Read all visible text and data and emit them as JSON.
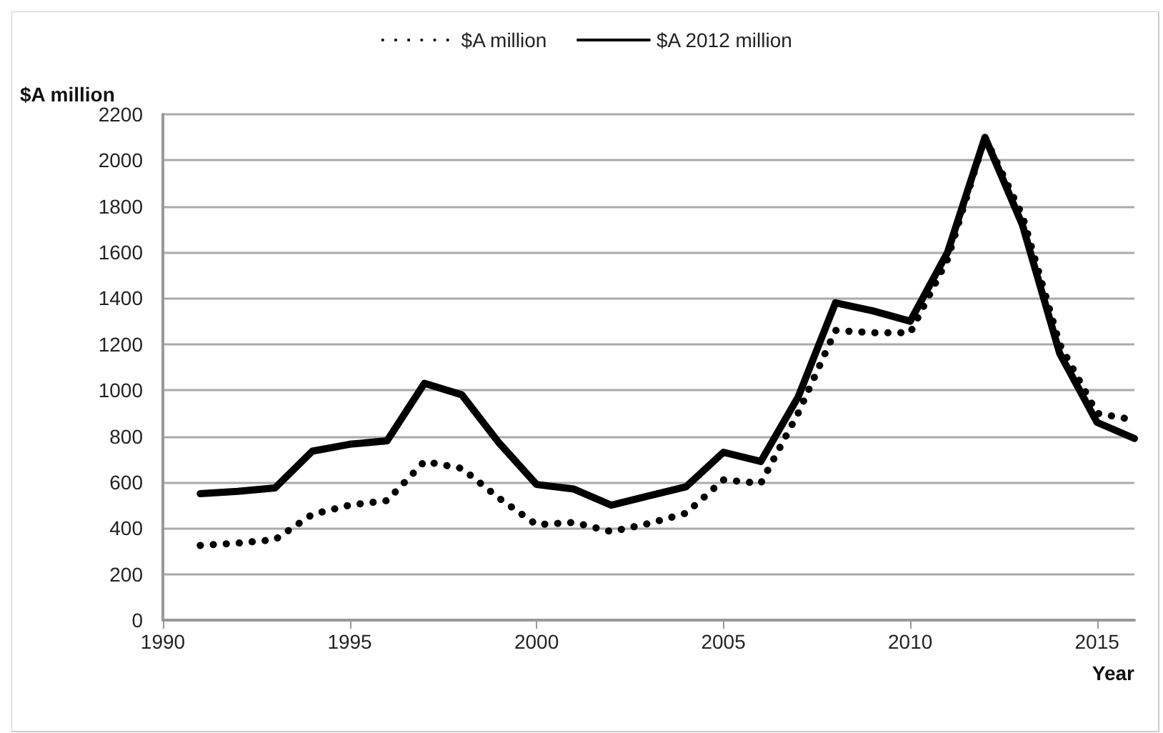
{
  "chart_data": {
    "type": "line",
    "xlabel": "Year",
    "ylabel": "$A million",
    "x": [
      1991,
      1992,
      1993,
      1994,
      1995,
      1996,
      1997,
      1998,
      1999,
      2000,
      2001,
      2002,
      2003,
      2004,
      2005,
      2006,
      2007,
      2008,
      2009,
      2010,
      2011,
      2012,
      2013,
      2014,
      2015,
      2016
    ],
    "series": [
      {
        "name": "$A million",
        "color": "#000000",
        "line_style": "dotted",
        "values": [
          325,
          335,
          350,
          460,
          500,
          520,
          690,
          660,
          530,
          415,
          425,
          385,
          420,
          465,
          610,
          595,
          900,
          1260,
          1250,
          1250,
          1570,
          2100,
          1760,
          1200,
          900,
          870
        ]
      },
      {
        "name": "$A 2012 million",
        "color": "#000000",
        "line_style": "solid",
        "values": [
          550,
          560,
          575,
          735,
          765,
          780,
          1030,
          980,
          770,
          590,
          570,
          500,
          540,
          580,
          730,
          690,
          970,
          1380,
          1345,
          1300,
          1600,
          2100,
          1720,
          1160,
          860,
          790
        ]
      }
    ],
    "xlim": [
      1990,
      2016
    ],
    "xticks": [
      1990,
      1995,
      2000,
      2005,
      2010,
      2015
    ],
    "ylim": [
      0,
      2200
    ],
    "yticks": [
      0,
      200,
      400,
      600,
      800,
      1000,
      1200,
      1400,
      1600,
      1800,
      2000,
      2200
    ],
    "grid": "y",
    "legend": "top",
    "marker": "none"
  }
}
